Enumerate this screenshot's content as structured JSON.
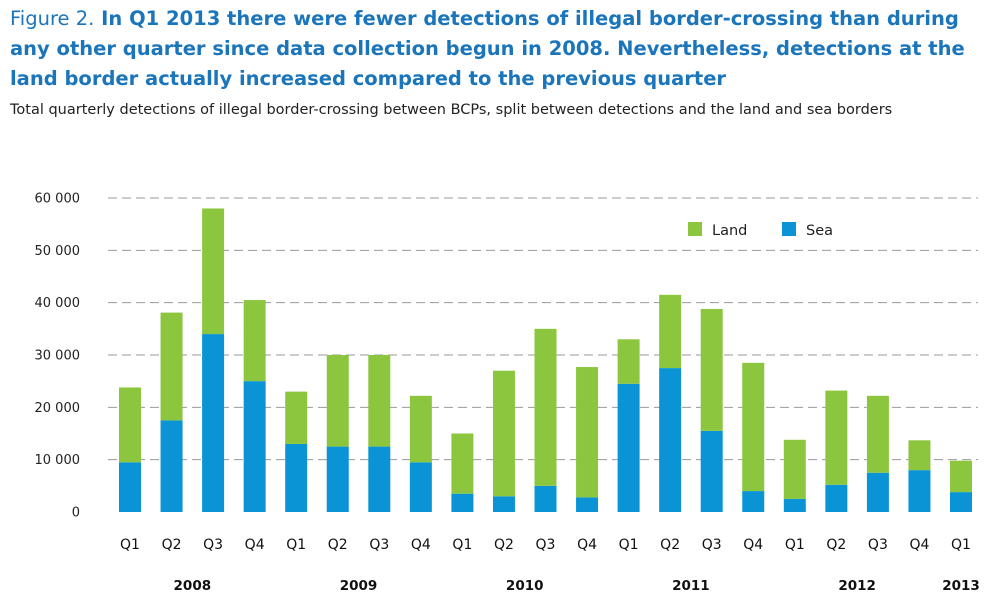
{
  "figure": {
    "label": "Figure 2.",
    "title": "In Q1 2013 there were fewer detections of illegal border-crossing than during any other quarter since data collection begun in 2008. Nevertheless, detections at the land border actually increased compared to the previous quarter",
    "subtitle": "Total quarterly detections of illegal border-crossing between BCPs, split between detections and the land and sea borders"
  },
  "chart_data": {
    "type": "bar",
    "stacked": true,
    "categories": [
      "Q1",
      "Q2",
      "Q3",
      "Q4",
      "Q1",
      "Q2",
      "Q3",
      "Q4",
      "Q1",
      "Q2",
      "Q3",
      "Q4",
      "Q1",
      "Q2",
      "Q3",
      "Q4",
      "Q1",
      "Q2",
      "Q3",
      "Q4",
      "Q1"
    ],
    "years": [
      {
        "label": "2008",
        "start": 0,
        "end": 3
      },
      {
        "label": "2009",
        "start": 4,
        "end": 7
      },
      {
        "label": "2010",
        "start": 8,
        "end": 11
      },
      {
        "label": "2011",
        "start": 12,
        "end": 15
      },
      {
        "label": "2012",
        "start": 16,
        "end": 19
      },
      {
        "label": "2013",
        "start": 20,
        "end": 20
      }
    ],
    "series": [
      {
        "name": "Sea",
        "color": "#0a94d6",
        "values": [
          9500,
          17500,
          34000,
          25000,
          13000,
          12500,
          12500,
          9500,
          3500,
          3000,
          5000,
          2800,
          24500,
          27500,
          15500,
          4000,
          2500,
          5200,
          7500,
          8000,
          3800
        ]
      },
      {
        "name": "Land",
        "color": "#8cc63f",
        "values": [
          14300,
          20600,
          24000,
          15500,
          10000,
          17500,
          17500,
          12700,
          11500,
          24000,
          30000,
          24900,
          8500,
          14000,
          23300,
          24500,
          11300,
          18000,
          14700,
          5700,
          6000
        ]
      }
    ],
    "legend": {
      "position": "top-right",
      "order": [
        "Land",
        "Sea"
      ]
    },
    "ylim": [
      0,
      60000
    ],
    "yticks": [
      0,
      10000,
      20000,
      30000,
      40000,
      50000,
      60000
    ],
    "ytick_labels": [
      "0",
      "10 000",
      "20 000",
      "30 000",
      "40 000",
      "50 000",
      "60 000"
    ],
    "grid": "dashed-horizontal",
    "xlabel": "",
    "ylabel": ""
  }
}
